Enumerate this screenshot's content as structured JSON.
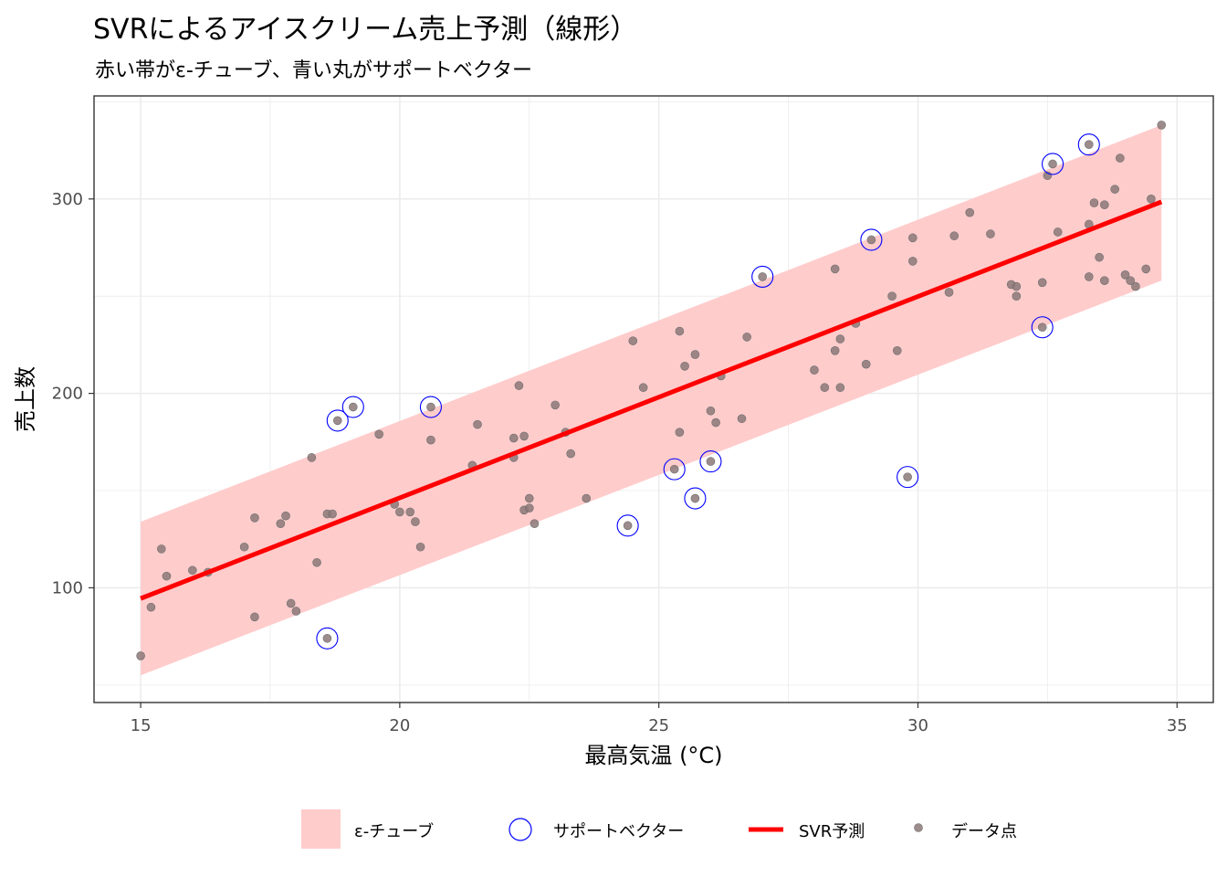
{
  "chart_data": {
    "type": "scatter",
    "title": "SVRによるアイスクリーム売上予測（線形）",
    "subtitle": "赤い帯がε-チューブ、青い丸がサポートベクター",
    "xlabel": "最高気温 (°C)",
    "ylabel": "売上数",
    "xlim": [
      14.1,
      35.7
    ],
    "ylim": [
      41,
      353
    ],
    "x_ticks": [
      15,
      20,
      25,
      30,
      35
    ],
    "y_ticks": [
      100,
      200,
      300
    ],
    "grid": true,
    "legend_position": "bottom",
    "colors": {
      "tube": "#ffcccc",
      "line": "#ff0000",
      "support_vector": "#0000ff",
      "point_fill": "#8c7878",
      "grid": "#ebebeb",
      "panel_border": "#333333"
    },
    "epsilon_tube": {
      "x": [
        15.0,
        34.7
      ],
      "lower": [
        55,
        258
      ],
      "upper": [
        134,
        338
      ]
    },
    "svr_prediction": {
      "x": [
        15.0,
        34.7
      ],
      "y": [
        94.5,
        298.5
      ]
    },
    "series": [
      {
        "name": "データ点",
        "points": [
          [
            15.0,
            65
          ],
          [
            15.2,
            90
          ],
          [
            15.4,
            120
          ],
          [
            15.5,
            106
          ],
          [
            16.0,
            109
          ],
          [
            16.3,
            108
          ],
          [
            17.0,
            121
          ],
          [
            17.2,
            85
          ],
          [
            17.2,
            136
          ],
          [
            17.7,
            133
          ],
          [
            17.8,
            137
          ],
          [
            17.9,
            92
          ],
          [
            18.0,
            88
          ],
          [
            18.3,
            167
          ],
          [
            18.4,
            113
          ],
          [
            18.6,
            138
          ],
          [
            18.7,
            138
          ],
          [
            18.6,
            74
          ],
          [
            18.8,
            186
          ],
          [
            19.1,
            193
          ],
          [
            19.6,
            179
          ],
          [
            19.9,
            143
          ],
          [
            20.0,
            139
          ],
          [
            20.2,
            139
          ],
          [
            20.3,
            134
          ],
          [
            20.4,
            121
          ],
          [
            20.6,
            193
          ],
          [
            20.6,
            176
          ],
          [
            21.4,
            163
          ],
          [
            21.5,
            184
          ],
          [
            22.2,
            177
          ],
          [
            22.2,
            167
          ],
          [
            22.3,
            204
          ],
          [
            22.4,
            140
          ],
          [
            22.4,
            178
          ],
          [
            22.5,
            146
          ],
          [
            22.5,
            141
          ],
          [
            22.6,
            133
          ],
          [
            23.0,
            194
          ],
          [
            23.2,
            180
          ],
          [
            23.3,
            169
          ],
          [
            23.6,
            146
          ],
          [
            24.4,
            132
          ],
          [
            24.5,
            227
          ],
          [
            24.7,
            203
          ],
          [
            25.3,
            161
          ],
          [
            25.4,
            180
          ],
          [
            25.4,
            232
          ],
          [
            25.5,
            214
          ],
          [
            25.7,
            220
          ],
          [
            25.7,
            146
          ],
          [
            26.0,
            165
          ],
          [
            26.0,
            191
          ],
          [
            26.1,
            185
          ],
          [
            26.2,
            209
          ],
          [
            26.6,
            187
          ],
          [
            26.7,
            229
          ],
          [
            27.0,
            260
          ],
          [
            28.0,
            212
          ],
          [
            28.2,
            203
          ],
          [
            28.4,
            264
          ],
          [
            28.4,
            222
          ],
          [
            28.5,
            228
          ],
          [
            28.5,
            203
          ],
          [
            28.8,
            236
          ],
          [
            29.0,
            215
          ],
          [
            29.1,
            279
          ],
          [
            29.5,
            250
          ],
          [
            29.6,
            222
          ],
          [
            29.8,
            157
          ],
          [
            29.9,
            268
          ],
          [
            29.9,
            280
          ],
          [
            30.6,
            252
          ],
          [
            30.7,
            281
          ],
          [
            31.0,
            293
          ],
          [
            31.4,
            282
          ],
          [
            31.8,
            256
          ],
          [
            31.9,
            250
          ],
          [
            31.9,
            255
          ],
          [
            32.4,
            257
          ],
          [
            32.4,
            234
          ],
          [
            32.5,
            312
          ],
          [
            32.6,
            318
          ],
          [
            32.7,
            283
          ],
          [
            33.3,
            328
          ],
          [
            33.3,
            260
          ],
          [
            33.3,
            287
          ],
          [
            33.4,
            298
          ],
          [
            33.5,
            270
          ],
          [
            33.6,
            297
          ],
          [
            33.6,
            258
          ],
          [
            33.8,
            305
          ],
          [
            33.9,
            321
          ],
          [
            34.0,
            261
          ],
          [
            34.1,
            258
          ],
          [
            34.2,
            255
          ],
          [
            34.4,
            264
          ],
          [
            34.5,
            300
          ],
          [
            34.7,
            338
          ]
        ]
      },
      {
        "name": "サポートベクター",
        "points": [
          [
            18.6,
            74
          ],
          [
            18.8,
            186
          ],
          [
            19.1,
            193
          ],
          [
            20.6,
            193
          ],
          [
            24.4,
            132
          ],
          [
            25.3,
            161
          ],
          [
            25.7,
            146
          ],
          [
            26.0,
            165
          ],
          [
            27.0,
            260
          ],
          [
            29.1,
            279
          ],
          [
            29.8,
            157
          ],
          [
            32.4,
            234
          ],
          [
            32.6,
            318
          ],
          [
            33.3,
            328
          ]
        ]
      }
    ],
    "legend": {
      "tube": "ε-チューブ",
      "support_vector": "サポートベクター",
      "line": "SVR予測",
      "points": "データ点"
    }
  }
}
